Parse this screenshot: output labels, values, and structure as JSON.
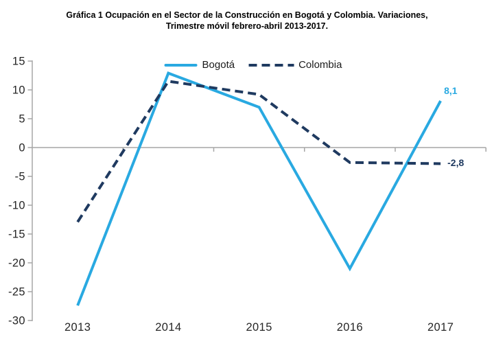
{
  "title": {
    "line1": "Gráfica 1  Ocupación en el Sector de la Construcción en Bogotá y Colombia. Variaciones,",
    "line2": "Trimestre móvil febrero-abril 2013-2017."
  },
  "colors": {
    "bogota_blue": "#29A9E1",
    "colombia_navy": "#1F3A60",
    "axis_gray": "#A6A6A6",
    "tick_text": "#262626",
    "title_text": "#000000"
  },
  "chart_data": {
    "type": "line",
    "title": "Gráfica 1 Ocupación en el Sector de la Construcción en Bogotá y Colombia. Variaciones, Trimestre móvil febrero-abril 2013-2017.",
    "categories": [
      "2013",
      "2014",
      "2015",
      "2016",
      "2017"
    ],
    "series": [
      {
        "name": "Bogotá",
        "values": [
          -27.4,
          12.9,
          7.0,
          -21.0,
          8.1
        ],
        "color": "#29A9E1",
        "dashed": false,
        "end_label": "8,1"
      },
      {
        "name": "Colombia",
        "values": [
          -12.9,
          11.5,
          9.2,
          -2.6,
          -2.8
        ],
        "color": "#1F3A60",
        "dashed": true,
        "end_label": "-2,8"
      }
    ],
    "ylim": [
      -30,
      15
    ],
    "yticks": [
      15,
      10,
      5,
      0,
      -5,
      -10,
      -15,
      -20,
      -25,
      -30
    ],
    "xlabel": "",
    "ylabel": "",
    "grid": "zero-baseline-only",
    "legend_position": "top-center"
  }
}
